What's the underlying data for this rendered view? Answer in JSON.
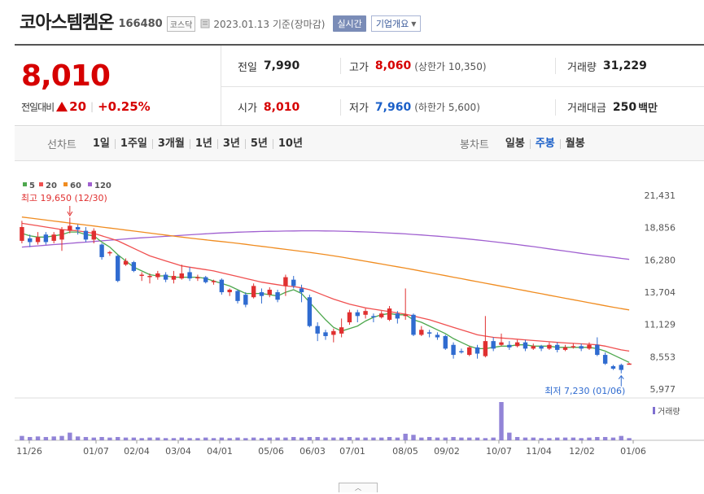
{
  "header": {
    "name": "코아스템켐온",
    "code": "166480",
    "market": "코스닥",
    "date": "2023.01.13 기준(장마감)",
    "realtime_label": "실시간",
    "company_label": "기업개요"
  },
  "price": {
    "current": "8,010",
    "change_label": "전일대비",
    "change_value": "20",
    "change_pct": "+0.25%"
  },
  "stats": {
    "prev_label": "전일",
    "prev_value": "7,990",
    "high_label": "고가",
    "high_value": "8,060",
    "upper_limit": "(상한가 10,350)",
    "volume_label": "거래량",
    "volume_value": "31,229",
    "open_label": "시가",
    "open_value": "8,010",
    "low_label": "저가",
    "low_value": "7,960",
    "lower_limit": "(하한가 5,600)",
    "amount_label": "거래대금",
    "amount_value": "250",
    "amount_unit": "백만"
  },
  "period": {
    "line_label": "선차트",
    "line_options": [
      "1일",
      "1주일",
      "3개월",
      "1년",
      "3년",
      "5년",
      "10년"
    ],
    "candle_label": "봉차트",
    "candle_options": [
      "일봉",
      "주봉",
      "월봉"
    ],
    "active_candle": "주봉"
  },
  "colors": {
    "up": "#e03030",
    "down": "#2f6bd0",
    "ma5": "#4ea84e",
    "ma20": "#f05050",
    "ma60": "#f08c20",
    "ma120": "#a060d0",
    "volume": "#7f6fd0"
  },
  "chart_data": {
    "type": "candlestick",
    "legend": [
      "5",
      "20",
      "60",
      "120"
    ],
    "y_ticks": [
      "21,431",
      "18,856",
      "16,280",
      "13,704",
      "11,129",
      "8,553",
      "5,977"
    ],
    "ylim": [
      5977,
      21431
    ],
    "x_ticks": [
      "11/26",
      "01/07",
      "02/04",
      "03/04",
      "04/01",
      "05/06",
      "06/03",
      "07/01",
      "08/05",
      "09/02",
      "10/07",
      "11/04",
      "12/02",
      "01/06"
    ],
    "high_annotation": "최고 19,650 (12/30)",
    "low_annotation": "최저 7,230 (01/06)",
    "volume_label": "거래량",
    "candles": [
      {
        "o": 17800,
        "c": 18900,
        "h": 19400,
        "l": 17600
      },
      {
        "o": 18000,
        "c": 17700,
        "h": 18300,
        "l": 17300
      },
      {
        "o": 17700,
        "c": 18100,
        "h": 18500,
        "l": 17500
      },
      {
        "o": 18300,
        "c": 17700,
        "h": 18500,
        "l": 17500
      },
      {
        "o": 17800,
        "c": 18300,
        "h": 18500,
        "l": 17600
      },
      {
        "o": 17900,
        "c": 18700,
        "h": 18900,
        "l": 17000
      },
      {
        "o": 18600,
        "c": 19000,
        "h": 19650,
        "l": 18400
      },
      {
        "o": 18900,
        "c": 18700,
        "h": 19100,
        "l": 18300
      },
      {
        "o": 18600,
        "c": 17900,
        "h": 18900,
        "l": 17700
      },
      {
        "o": 17900,
        "c": 18600,
        "h": 18800,
        "l": 17600
      },
      {
        "o": 17500,
        "c": 16500,
        "h": 17600,
        "l": 16300
      },
      {
        "o": 16800,
        "c": 16900,
        "h": 17000,
        "l": 16600
      },
      {
        "o": 16600,
        "c": 14600,
        "h": 16700,
        "l": 14500
      },
      {
        "o": 15900,
        "c": 16200,
        "h": 16400,
        "l": 15800
      },
      {
        "o": 16100,
        "c": 15400,
        "h": 16200,
        "l": 15300
      },
      {
        "o": 15000,
        "c": 15100,
        "h": 15300,
        "l": 14600
      },
      {
        "o": 15000,
        "c": 15000,
        "h": 15200,
        "l": 14400
      },
      {
        "o": 14900,
        "c": 15200,
        "h": 15400,
        "l": 14700
      },
      {
        "o": 15100,
        "c": 14700,
        "h": 15300,
        "l": 14500
      },
      {
        "o": 14700,
        "c": 15000,
        "h": 15400,
        "l": 14400
      },
      {
        "o": 14800,
        "c": 15200,
        "h": 15900,
        "l": 14700
      },
      {
        "o": 15300,
        "c": 14800,
        "h": 15700,
        "l": 14600
      },
      {
        "o": 14900,
        "c": 14900,
        "h": 15100,
        "l": 14600
      },
      {
        "o": 14900,
        "c": 14500,
        "h": 15000,
        "l": 14400
      },
      {
        "o": 14500,
        "c": 14600,
        "h": 14700,
        "l": 14300
      },
      {
        "o": 14700,
        "c": 13700,
        "h": 14800,
        "l": 13500
      },
      {
        "o": 13700,
        "c": 13900,
        "h": 14000,
        "l": 13400
      },
      {
        "o": 13800,
        "c": 13000,
        "h": 13900,
        "l": 12800
      },
      {
        "o": 13500,
        "c": 12700,
        "h": 13700,
        "l": 12500
      },
      {
        "o": 13300,
        "c": 14200,
        "h": 14400,
        "l": 13200
      },
      {
        "o": 13700,
        "c": 13400,
        "h": 14000,
        "l": 12800
      },
      {
        "o": 13500,
        "c": 13900,
        "h": 14100,
        "l": 13300
      },
      {
        "o": 13700,
        "c": 13100,
        "h": 13900,
        "l": 12900
      },
      {
        "o": 14200,
        "c": 14900,
        "h": 15100,
        "l": 13400
      },
      {
        "o": 14700,
        "c": 14200,
        "h": 15000,
        "l": 14000
      },
      {
        "o": 14000,
        "c": 13700,
        "h": 14300,
        "l": 12900
      },
      {
        "o": 13300,
        "c": 11000,
        "h": 13500,
        "l": 10900
      },
      {
        "o": 11000,
        "c": 10400,
        "h": 11300,
        "l": 9800
      },
      {
        "o": 10500,
        "c": 10200,
        "h": 10700,
        "l": 9900
      },
      {
        "o": 10300,
        "c": 10600,
        "h": 10800,
        "l": 9700
      },
      {
        "o": 10400,
        "c": 10900,
        "h": 11600,
        "l": 10100
      },
      {
        "o": 11300,
        "c": 12100,
        "h": 12300,
        "l": 11100
      },
      {
        "o": 12100,
        "c": 11800,
        "h": 12300,
        "l": 11300
      },
      {
        "o": 11900,
        "c": 12200,
        "h": 12400,
        "l": 11600
      },
      {
        "o": 11800,
        "c": 11700,
        "h": 12000,
        "l": 11300
      },
      {
        "o": 11700,
        "c": 12000,
        "h": 12200,
        "l": 11600
      },
      {
        "o": 11500,
        "c": 12400,
        "h": 12600,
        "l": 11400
      },
      {
        "o": 12000,
        "c": 11600,
        "h": 12200,
        "l": 11200
      },
      {
        "o": 11800,
        "c": 11900,
        "h": 14000,
        "l": 11500
      },
      {
        "o": 11900,
        "c": 10300,
        "h": 12000,
        "l": 10200
      },
      {
        "o": 10300,
        "c": 10700,
        "h": 11000,
        "l": 10200
      },
      {
        "o": 10500,
        "c": 10400,
        "h": 10700,
        "l": 10100
      },
      {
        "o": 10300,
        "c": 10100,
        "h": 10500,
        "l": 9900
      },
      {
        "o": 10200,
        "c": 9200,
        "h": 10300,
        "l": 9100
      },
      {
        "o": 9500,
        "c": 8700,
        "h": 9700,
        "l": 8400
      },
      {
        "o": 9000,
        "c": 8900,
        "h": 9200,
        "l": 8800
      },
      {
        "o": 8700,
        "c": 9300,
        "h": 9400,
        "l": 8600
      },
      {
        "o": 9300,
        "c": 8800,
        "h": 9500,
        "l": 8400
      },
      {
        "o": 8600,
        "c": 9800,
        "h": 11800,
        "l": 8500
      },
      {
        "o": 9800,
        "c": 9200,
        "h": 10100,
        "l": 9000
      },
      {
        "o": 9500,
        "c": 9700,
        "h": 10400,
        "l": 9400
      },
      {
        "o": 9500,
        "c": 9300,
        "h": 9800,
        "l": 9100
      },
      {
        "o": 9400,
        "c": 9700,
        "h": 9900,
        "l": 9300
      },
      {
        "o": 9700,
        "c": 9200,
        "h": 9900,
        "l": 9000
      },
      {
        "o": 9200,
        "c": 9400,
        "h": 9600,
        "l": 9100
      },
      {
        "o": 9400,
        "c": 9200,
        "h": 9500,
        "l": 9000
      },
      {
        "o": 9200,
        "c": 9500,
        "h": 9700,
        "l": 9100
      },
      {
        "o": 9500,
        "c": 9100,
        "h": 9700,
        "l": 8900
      },
      {
        "o": 9100,
        "c": 9300,
        "h": 9500,
        "l": 9000
      },
      {
        "o": 9300,
        "c": 9400,
        "h": 9600,
        "l": 9200
      },
      {
        "o": 9400,
        "c": 9200,
        "h": 9600,
        "l": 9000
      },
      {
        "o": 9200,
        "c": 9500,
        "h": 9700,
        "l": 9100
      },
      {
        "o": 9500,
        "c": 8700,
        "h": 10100,
        "l": 8600
      },
      {
        "o": 8700,
        "c": 8000,
        "h": 8900,
        "l": 7900
      },
      {
        "o": 7800,
        "c": 7600,
        "h": 7900,
        "l": 7500
      },
      {
        "o": 7900,
        "c": 7500,
        "h": 8000,
        "l": 7230
      },
      {
        "o": 7990,
        "c": 8010,
        "h": 8060,
        "l": 7960
      }
    ],
    "ma5": [
      18400,
      18200,
      18100,
      18100,
      18200,
      18300,
      18500,
      18500,
      18300,
      18200,
      17700,
      17300,
      16700,
      16200,
      15700,
      15400,
      15100,
      15000,
      15000,
      14900,
      14900,
      14900,
      14900,
      14800,
      14600,
      14400,
      14200,
      13900,
      13600,
      13600,
      13600,
      13500,
      13400,
      13700,
      13900,
      13600,
      12900,
      12200,
      11500,
      10900,
      10600,
      10800,
      11000,
      11400,
      11700,
      11900,
      12000,
      11900,
      11900,
      11500,
      11300,
      11000,
      10700,
      10400,
      10000,
      9700,
      9400,
      9200,
      9200,
      9300,
      9400,
      9400,
      9500,
      9500,
      9400,
      9400,
      9400,
      9300,
      9300,
      9300,
      9300,
      9300,
      9200,
      9000,
      8700,
      8400,
      8100
    ],
    "ma20": [
      19200,
      19100,
      19000,
      18900,
      18800,
      18700,
      18650,
      18600,
      18500,
      18400,
      18200,
      18000,
      17800,
      17500,
      17200,
      16900,
      16600,
      16400,
      16200,
      16000,
      15800,
      15700,
      15600,
      15500,
      15400,
      15250,
      15100,
      14950,
      14800,
      14650,
      14500,
      14400,
      14300,
      14200,
      14150,
      14050,
      13900,
      13650,
      13400,
      13150,
      12950,
      12750,
      12600,
      12450,
      12350,
      12250,
      12150,
      12050,
      11950,
      11800,
      11650,
      11500,
      11300,
      11100,
      10900,
      10700,
      10500,
      10300,
      10200,
      10100,
      10050,
      10000,
      9950,
      9900,
      9850,
      9800,
      9750,
      9700,
      9650,
      9620,
      9580,
      9550,
      9500,
      9400,
      9250,
      9100,
      9000
    ],
    "ma60": [
      19700,
      19620,
      19540,
      19460,
      19380,
      19300,
      19220,
      19140,
      19060,
      18980,
      18900,
      18820,
      18740,
      18660,
      18580,
      18500,
      18420,
      18340,
      18260,
      18180,
      18100,
      18020,
      17950,
      17880,
      17810,
      17740,
      17670,
      17600,
      17520,
      17440,
      17360,
      17280,
      17200,
      17120,
      17040,
      16960,
      16880,
      16790,
      16700,
      16600,
      16500,
      16390,
      16280,
      16170,
      16060,
      15950,
      15840,
      15730,
      15620,
      15500,
      15380,
      15260,
      15140,
      15020,
      14900,
      14780,
      14660,
      14540,
      14420,
      14300,
      14180,
      14060,
      13940,
      13820,
      13700,
      13580,
      13460,
      13340,
      13220,
      13100,
      12980,
      12860,
      12740,
      12620,
      12500,
      12390,
      12290
    ],
    "ma120": [
      17300,
      17350,
      17400,
      17450,
      17500,
      17550,
      17600,
      17650,
      17700,
      17750,
      17800,
      17850,
      17900,
      17950,
      18000,
      18040,
      18080,
      18120,
      18160,
      18200,
      18240,
      18280,
      18320,
      18360,
      18400,
      18430,
      18460,
      18490,
      18510,
      18530,
      18550,
      18560,
      18570,
      18580,
      18590,
      18600,
      18600,
      18600,
      18590,
      18580,
      18570,
      18550,
      18530,
      18510,
      18480,
      18450,
      18420,
      18390,
      18350,
      18310,
      18270,
      18220,
      18170,
      18120,
      18060,
      18000,
      17940,
      17870,
      17800,
      17730,
      17660,
      17580,
      17500,
      17420,
      17340,
      17250,
      17160,
      17070,
      16980,
      16890,
      16800,
      16720,
      16640,
      16560,
      16480,
      16400,
      16320
    ],
    "volume": [
      8,
      6,
      7,
      6,
      7,
      8,
      14,
      7,
      6,
      5,
      6,
      5,
      6,
      5,
      5,
      4,
      5,
      5,
      4,
      4,
      5,
      4,
      4,
      5,
      4,
      5,
      4,
      5,
      4,
      5,
      4,
      5,
      5,
      5,
      6,
      5,
      6,
      6,
      5,
      5,
      5,
      6,
      5,
      5,
      5,
      5,
      6,
      5,
      12,
      10,
      5,
      6,
      5,
      5,
      6,
      5,
      5,
      5,
      4,
      5,
      70,
      14,
      6,
      5,
      5,
      4,
      4,
      5,
      5,
      5,
      4,
      5,
      6,
      6,
      5,
      8,
      4
    ]
  }
}
